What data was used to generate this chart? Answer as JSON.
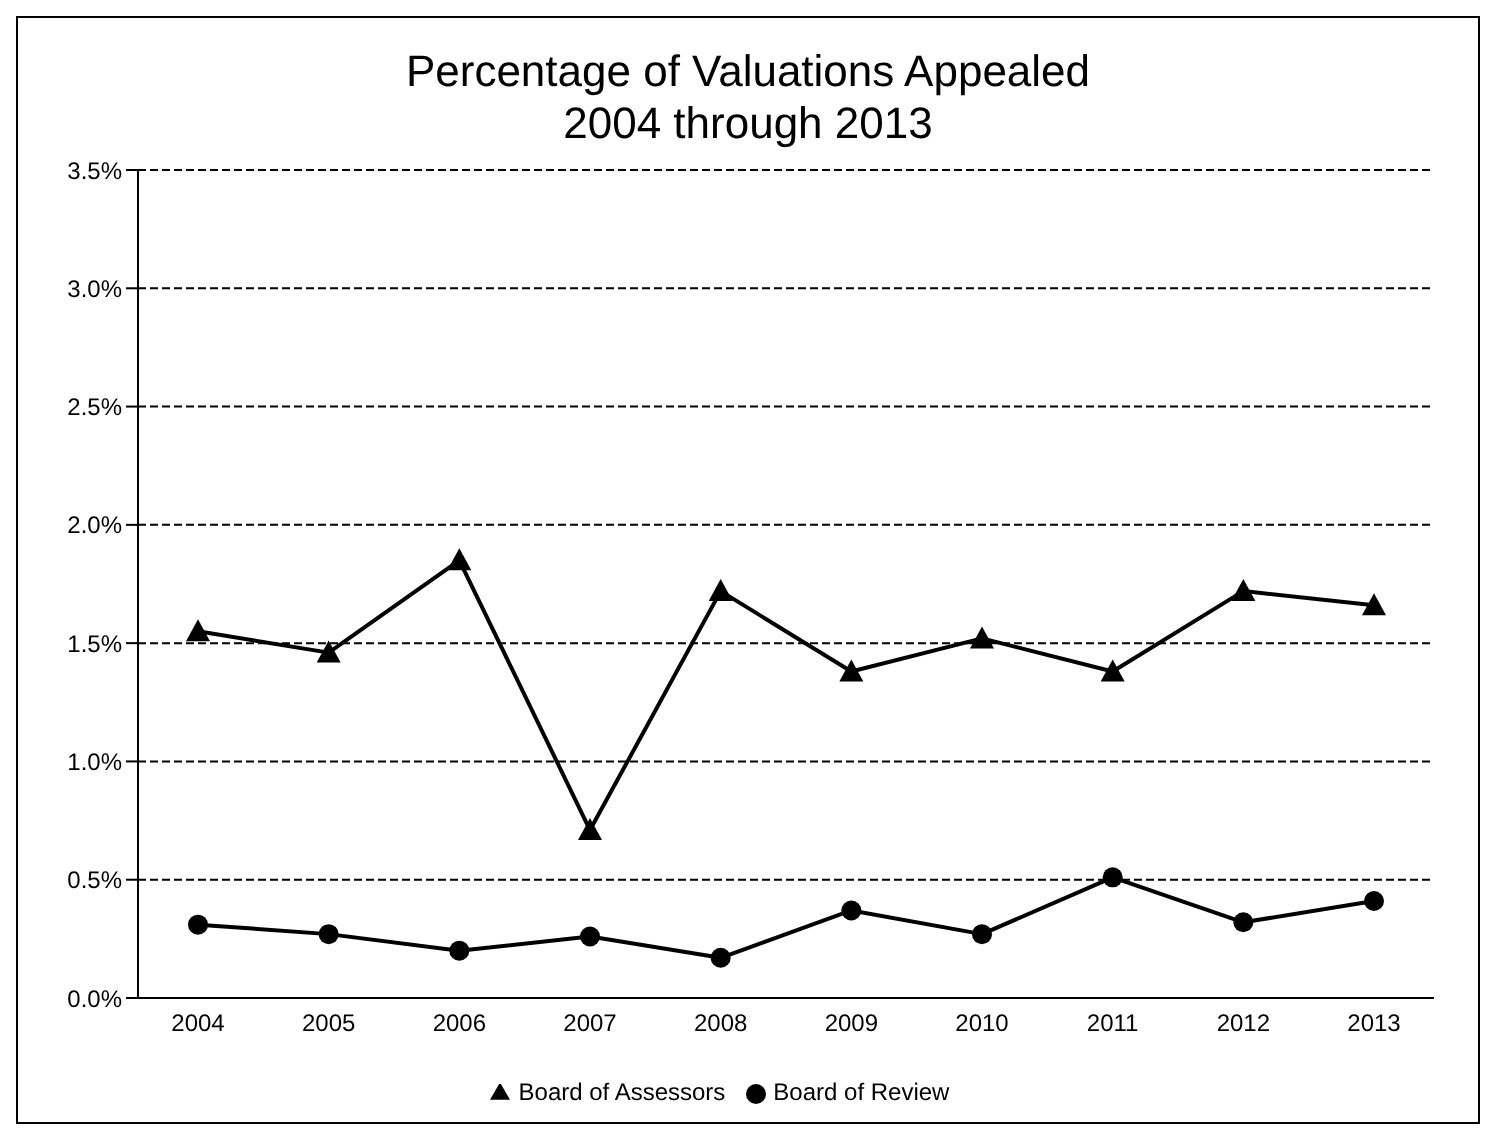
{
  "chart_data": {
    "type": "line",
    "title": "Percentage of Valuations Appealed\n2004 through 2013",
    "categories": [
      "2004",
      "2005",
      "2006",
      "2007",
      "2008",
      "2009",
      "2010",
      "2011",
      "2012",
      "2013"
    ],
    "series": [
      {
        "name": "Board of Assessors",
        "color": "#000000",
        "marker": "triangle",
        "values": [
          1.55,
          1.46,
          1.85,
          0.71,
          1.72,
          1.38,
          1.52,
          1.38,
          1.72,
          1.66
        ]
      },
      {
        "name": "Board of Review",
        "color": "#000000",
        "marker": "circle",
        "values": [
          0.31,
          0.27,
          0.2,
          0.26,
          0.17,
          0.37,
          0.27,
          0.51,
          0.32,
          0.41
        ]
      }
    ],
    "ylim": [
      0,
      3.5
    ],
    "yticks": [
      {
        "value": 0,
        "label": "0.0%"
      },
      {
        "value": 0.5,
        "label": "0.5%"
      },
      {
        "value": 1,
        "label": "1.0%"
      },
      {
        "value": 1.5,
        "label": "1.5%"
      },
      {
        "value": 2,
        "label": "2.0%"
      },
      {
        "value": 2.5,
        "label": "2.5%"
      },
      {
        "value": 3,
        "label": "3.0%"
      },
      {
        "value": 3.5,
        "label": "3.5%"
      }
    ],
    "grid": "y",
    "legend": "bottom",
    "line_style": "solid"
  }
}
